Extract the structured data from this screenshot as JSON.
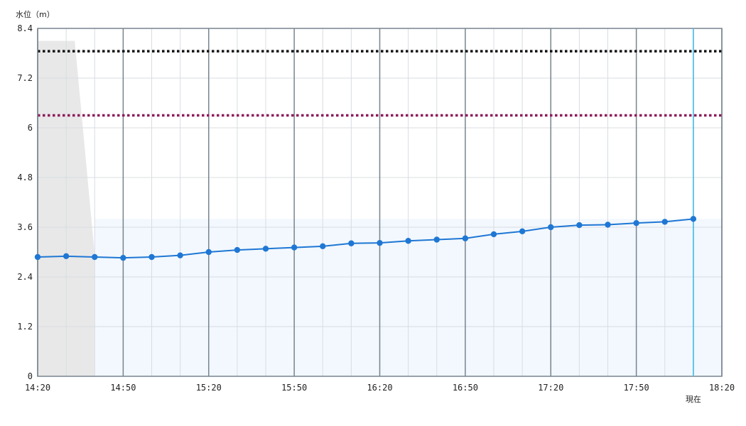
{
  "chart_data": {
    "type": "line",
    "ylabel": "水位（m）",
    "x_tick_labels": [
      "14:20",
      "14:50",
      "15:20",
      "15:50",
      "16:20",
      "16:50",
      "17:20",
      "17:50",
      "18:20"
    ],
    "y_tick_labels": [
      "0",
      "1.2",
      "2.4",
      "3.6",
      "4.8",
      "6",
      "7.2",
      "8.4"
    ],
    "ylim": [
      0,
      8.4
    ],
    "x_range": [
      "14:20",
      "18:20"
    ],
    "current_time": "18:10",
    "current_label": "現在",
    "grid": true,
    "series": [
      {
        "color": "#1f77d4",
        "x": [
          "14:20",
          "14:30",
          "14:40",
          "14:50",
          "15:00",
          "15:10",
          "15:20",
          "15:30",
          "15:40",
          "15:50",
          "16:00",
          "16:10",
          "16:20",
          "16:30",
          "16:40",
          "16:50",
          "17:00",
          "17:10",
          "17:20",
          "17:30",
          "17:40",
          "17:50",
          "18:00",
          "18:10"
        ],
        "values": [
          2.88,
          2.9,
          2.88,
          2.86,
          2.88,
          2.92,
          3.0,
          3.05,
          3.08,
          3.11,
          3.14,
          3.21,
          3.22,
          3.27,
          3.3,
          3.33,
          3.43,
          3.5,
          3.6,
          3.65,
          3.66,
          3.7,
          3.73,
          3.8
        ]
      }
    ],
    "reference_lines": [
      {
        "value": 7.85,
        "color": "#111111",
        "style": "dotted"
      },
      {
        "value": 6.3,
        "color": "#8e1a5a",
        "style": "dotted"
      }
    ],
    "shaded_regions": [
      {
        "type": "gray-area",
        "color": "#e8e8e8",
        "points": [
          [
            "14:20",
            8.1
          ],
          [
            "14:33",
            8.1
          ],
          [
            "14:44",
            0
          ],
          [
            "14:20",
            0
          ]
        ]
      },
      {
        "type": "light-blue-area",
        "color": "#f2f8fe",
        "x_from": "14:40",
        "x_to": "18:20",
        "value": 3.8
      }
    ]
  }
}
